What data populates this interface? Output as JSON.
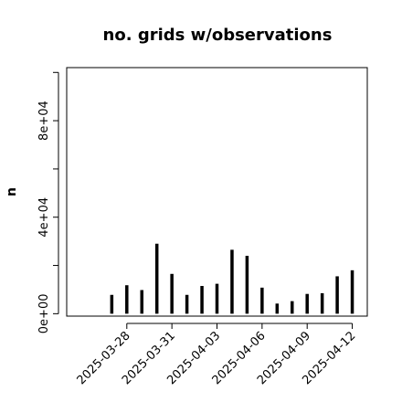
{
  "chart_data": {
    "type": "bar",
    "title": "no. grids w/observations",
    "ylabel": "n",
    "xlabel": "",
    "ylim": [
      -1000,
      102000
    ],
    "yticks": [
      0,
      40000,
      80000
    ],
    "ytick_labels": [
      "0e+00",
      "4e+04",
      "8e+04"
    ],
    "xlim": [
      "2025-03-24",
      "2025-04-13"
    ],
    "xticks": [
      "2025-03-28",
      "2025-03-31",
      "2025-04-03",
      "2025-04-06",
      "2025-04-09",
      "2025-04-12"
    ],
    "xtick_colors": [
      "#000000",
      "#000000",
      "#228b22",
      "#000000",
      "#000000",
      "#000000"
    ],
    "bar_color": "#000000",
    "x": [
      "2025-03-27",
      "2025-03-28",
      "2025-03-29",
      "2025-03-30",
      "2025-03-31",
      "2025-04-01",
      "2025-04-02",
      "2025-04-03",
      "2025-04-04",
      "2025-04-05",
      "2025-04-06",
      "2025-04-07",
      "2025-04-08",
      "2025-04-09",
      "2025-04-10",
      "2025-04-11",
      "2025-04-12"
    ],
    "values": [
      7800,
      11800,
      9800,
      29000,
      16500,
      7800,
      11500,
      12400,
      26500,
      24000,
      10800,
      4200,
      5200,
      8200,
      8500,
      15500,
      18000
    ],
    "grid": false
  }
}
